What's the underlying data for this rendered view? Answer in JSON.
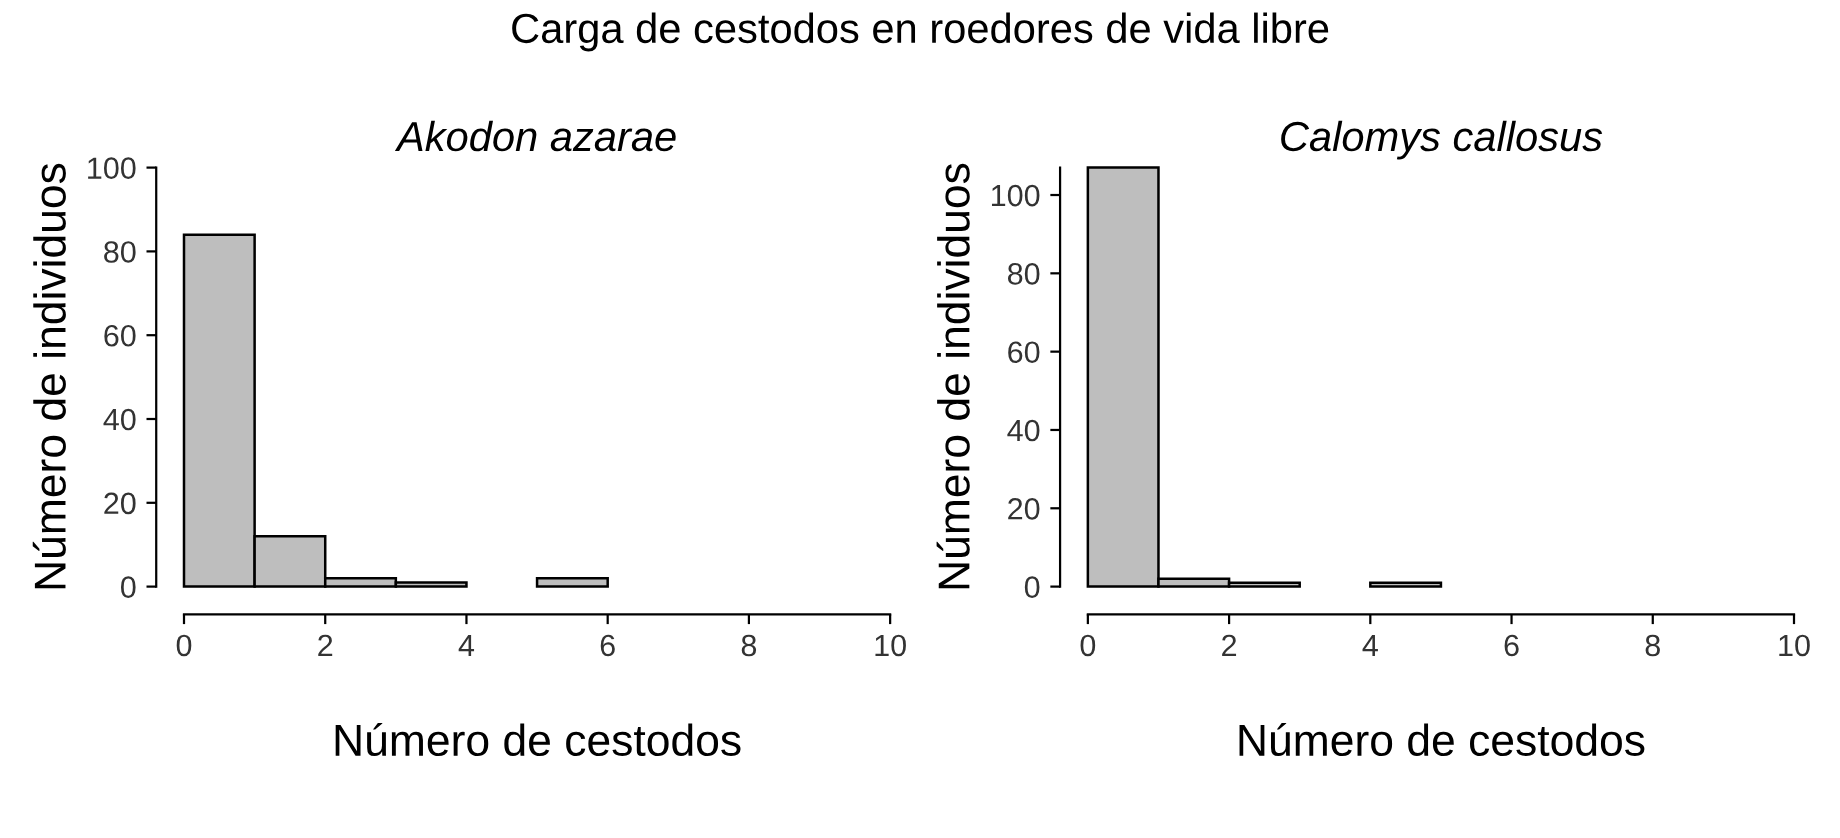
{
  "chart_data": [
    {
      "type": "histogram",
      "title": "Akodon azarae",
      "annotations": [
        "Carga de cestodos en roedores de vida libre"
      ],
      "xlabel": "Número de cestodos",
      "ylabel": "Número de individuos",
      "bins": [
        0,
        1,
        2,
        3,
        4,
        5,
        6,
        7,
        8,
        9,
        10
      ],
      "values": [
        84,
        12,
        2,
        1,
        0,
        2,
        0,
        0,
        0,
        0
      ],
      "color": "#bebebe",
      "xlim": [
        0,
        10
      ],
      "ylim": [
        0,
        100
      ],
      "xticks": [
        0,
        2,
        4,
        6,
        8,
        10
      ],
      "yticks": [
        0,
        20,
        40,
        60,
        80,
        100
      ],
      "grid": false
    },
    {
      "type": "histogram",
      "title": "Calomys callosus",
      "xlabel": "Número de cestodos",
      "ylabel": "Número de individuos",
      "bins": [
        0,
        1,
        2,
        3,
        4,
        5,
        6,
        7,
        8,
        9,
        10
      ],
      "values": [
        107,
        2,
        1,
        0,
        1,
        0,
        0,
        0,
        0,
        0
      ],
      "color": "#bebebe",
      "xlim": [
        0,
        10
      ],
      "ylim": [
        0,
        107
      ],
      "xticks": [
        0,
        2,
        4,
        6,
        8,
        10
      ],
      "yticks": [
        0,
        20,
        40,
        60,
        80,
        100
      ],
      "grid": false
    }
  ]
}
